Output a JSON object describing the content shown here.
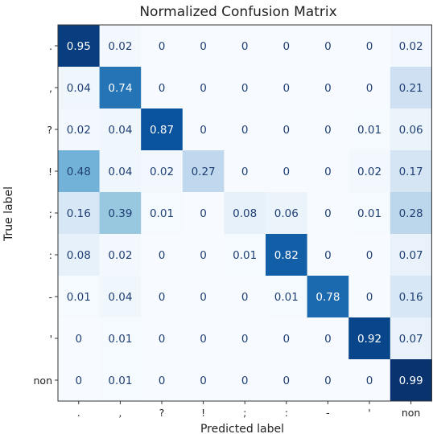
{
  "chart_data": {
    "type": "heatmap",
    "title": "Normalized Confusion Matrix",
    "xlabel": "Predicted label",
    "ylabel": "True label",
    "x_categories": [
      ".",
      ",",
      "?",
      "!",
      ";",
      ":",
      "-",
      "'",
      "non"
    ],
    "y_categories": [
      ".",
      ",",
      "?",
      "!",
      ";",
      ":",
      "-",
      "'",
      "non"
    ],
    "values": [
      [
        0.95,
        0.02,
        0,
        0,
        0,
        0,
        0,
        0,
        0.02
      ],
      [
        0.04,
        0.74,
        0,
        0,
        0,
        0,
        0,
        0,
        0.21
      ],
      [
        0.02,
        0.04,
        0.87,
        0,
        0,
        0,
        0,
        0.01,
        0.06
      ],
      [
        0.48,
        0.04,
        0.02,
        0.27,
        0,
        0,
        0,
        0.02,
        0.17
      ],
      [
        0.16,
        0.39,
        0.01,
        0,
        0.08,
        0.06,
        0,
        0.01,
        0.28
      ],
      [
        0.08,
        0.02,
        0,
        0,
        0.01,
        0.82,
        0,
        0,
        0.07
      ],
      [
        0.01,
        0.04,
        0,
        0,
        0,
        0.01,
        0.78,
        0,
        0.16
      ],
      [
        0,
        0.01,
        0,
        0,
        0,
        0,
        0,
        0.92,
        0.07
      ],
      [
        0,
        0.01,
        0,
        0,
        0,
        0,
        0,
        0,
        0.99
      ]
    ],
    "value_range": [
      0,
      1
    ],
    "colormap": "Blues",
    "colors": {
      "low": "#f7fbff",
      "high": "#08306b",
      "text_dark": "#1f3f73",
      "text_light": "#ffffff"
    },
    "grid": false,
    "legend": "none"
  }
}
